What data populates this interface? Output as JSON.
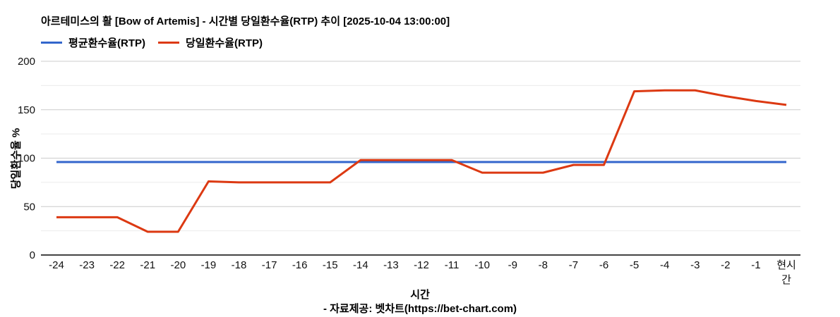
{
  "page": {
    "title": "아르테미스의 활 [Bow of Artemis] - 시간별 당일환수율(RTP) 추이 [2025-10-04 13:00:00]",
    "footer": "- 자료제공: 벳차트(https://bet-chart.com)"
  },
  "chart_data": {
    "type": "line",
    "title": "아르테미스의 활 [Bow of Artemis] - 시간별 당일환수율(RTP) 추이 [2025-10-04 13:00:00]",
    "xlabel": "시간",
    "ylabel": "당일환수율 %",
    "categories": [
      "-24",
      "-23",
      "-22",
      "-21",
      "-20",
      "-19",
      "-18",
      "-17",
      "-16",
      "-15",
      "-14",
      "-13",
      "-12",
      "-11",
      "-10",
      "-9",
      "-8",
      "-7",
      "-6",
      "-5",
      "-4",
      "-3",
      "-2",
      "-1",
      "현시\n간"
    ],
    "series": [
      {
        "name": "평균환수율(RTP)",
        "color": "#3366cc",
        "constant": 96
      },
      {
        "name": "당일환수율(RTP)",
        "color": "#dc3912",
        "values": [
          39,
          39,
          39,
          24,
          24,
          76,
          75,
          75,
          75,
          75,
          98,
          98,
          98,
          98,
          85,
          85,
          85,
          93,
          93,
          169,
          170,
          170,
          164,
          159,
          155
        ]
      }
    ],
    "ylim": [
      0,
      200
    ],
    "yticks": [
      0,
      50,
      100,
      150,
      200
    ],
    "minor_yticks": [
      25,
      75,
      125,
      175
    ],
    "grid": true,
    "legend_position": "top"
  },
  "colors": {
    "grid_major": "#cccccc",
    "grid_minor": "#ebebeb",
    "baseline": "#444444",
    "tick_text": "#111111",
    "background": "#ffffff"
  }
}
